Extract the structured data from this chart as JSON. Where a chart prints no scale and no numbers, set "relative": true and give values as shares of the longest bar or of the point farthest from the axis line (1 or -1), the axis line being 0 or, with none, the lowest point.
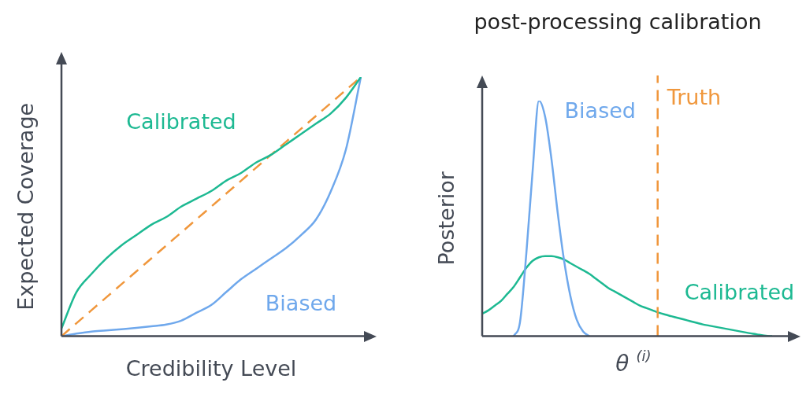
{
  "chart_data": [
    {
      "type": "line",
      "relative": true,
      "xlabel": "Credibility Level",
      "ylabel": "Expected Coverage",
      "legend": false,
      "marker": "none",
      "categories": [
        null,
        null,
        null,
        null,
        null,
        null,
        null,
        null,
        null,
        null,
        null,
        null,
        null,
        null,
        null,
        null,
        null,
        null,
        null,
        null,
        null
      ],
      "series": [
        {
          "name": "Calibrated",
          "color": "#1db992",
          "values": [
            0.03,
            0.17,
            0.24,
            0.3,
            0.35,
            0.39,
            0.43,
            0.46,
            0.5,
            0.53,
            0.56,
            0.6,
            0.63,
            0.67,
            0.7,
            0.74,
            0.78,
            0.82,
            0.86,
            0.92,
            1
          ]
        },
        {
          "color": "#f0973c",
          "line_style": "dashed",
          "values": [
            0,
            0.05,
            0.1,
            0.15,
            0.2,
            0.25,
            0.3,
            0.35,
            0.4,
            0.45,
            0.5,
            0.55,
            0.6,
            0.65,
            0.7,
            0.75,
            0.8,
            0.85,
            0.9,
            0.95,
            1
          ]
        },
        {
          "name": "Biased",
          "color": "#6fa8ec",
          "values": [
            0,
            0.01,
            0.018,
            0.022,
            0.027,
            0.032,
            0.038,
            0.045,
            0.06,
            0.09,
            0.12,
            0.17,
            0.22,
            0.26,
            0.3,
            0.34,
            0.39,
            0.45,
            0.56,
            0.72,
            1
          ]
        }
      ]
    },
    {
      "type": "line",
      "relative": true,
      "title": "post-processing calibration",
      "xlabel": "θ $^{(i)}$",
      "ylabel": "Posterior",
      "legend": false,
      "marker": "none",
      "annotations": [
        "Truth"
      ],
      "categories": [
        null,
        null,
        null,
        null,
        null,
        null,
        null,
        null,
        null,
        null,
        null,
        null,
        null,
        null,
        null,
        null,
        null,
        null,
        null,
        null,
        null,
        null,
        null,
        null,
        null,
        null,
        null,
        null,
        null,
        null,
        null,
        null,
        null,
        null,
        null,
        null,
        null,
        null,
        null,
        null,
        null,
        null,
        null,
        null,
        null,
        null,
        null,
        null,
        null
      ],
      "series": [
        {
          "name": "Biased",
          "color": "#6fa8ec",
          "values": [
            null,
            null,
            null,
            null,
            null,
            0,
            0.06,
            0.35,
            0.7,
            1,
            0.93,
            0.75,
            0.52,
            0.32,
            0.17,
            0.07,
            0.02,
            0,
            null,
            null,
            null,
            null,
            null,
            null,
            null,
            null,
            null,
            null,
            null,
            null,
            null,
            null,
            null,
            null,
            null,
            null,
            null,
            null,
            null,
            null,
            null,
            null,
            null,
            null,
            null,
            null,
            null,
            null,
            null
          ]
        },
        {
          "name": "Calibrated",
          "color": "#1db992",
          "values": [
            0.095,
            0.11,
            0.13,
            0.15,
            0.18,
            0.21,
            0.25,
            0.29,
            0.32,
            0.335,
            0.34,
            0.34,
            0.335,
            0.325,
            0.31,
            0.295,
            0.28,
            0.265,
            0.245,
            0.225,
            0.205,
            0.19,
            0.175,
            0.16,
            0.145,
            0.13,
            0.12,
            0.11,
            0.1,
            0.092,
            0.085,
            0.078,
            0.071,
            0.064,
            0.057,
            0.05,
            0.045,
            0.04,
            0.035,
            0.03,
            0.025,
            0.02,
            0.015,
            0.01,
            0.006,
            0.002,
            0,
            null,
            null
          ]
        }
      ]
    }
  ]
}
